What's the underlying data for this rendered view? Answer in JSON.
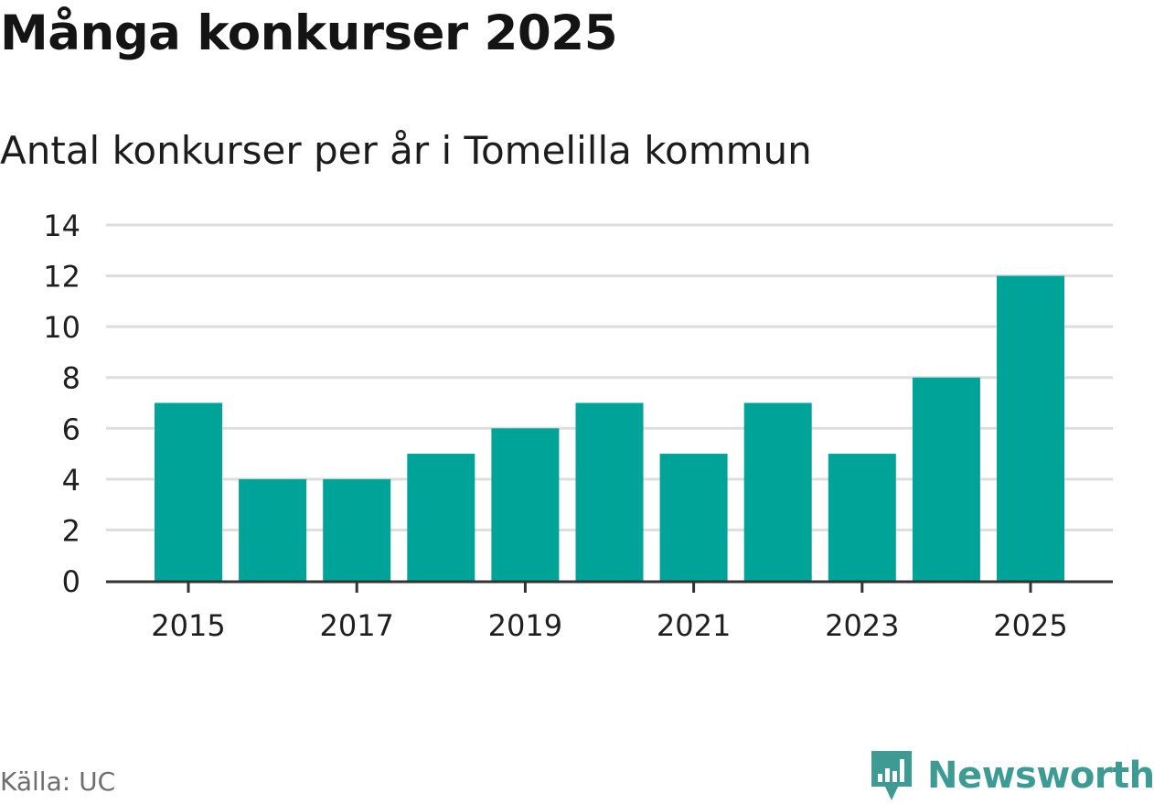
{
  "title": "Många konkurser 2025",
  "subtitle": "Antal konkurser per år i Tomelilla kommun",
  "source": "Källa: UC",
  "brand": {
    "name": "Newsworthy",
    "icon": "newsworthy-logo-icon",
    "color": "#3d9b93"
  },
  "colors": {
    "bar": "#00a398",
    "grid": "#dddddd",
    "axis": "#333333",
    "text": "#1f1f1f"
  },
  "chart_data": {
    "type": "bar",
    "title": "Många konkurser 2025",
    "subtitle": "Antal konkurser per år i Tomelilla kommun",
    "xlabel": "",
    "ylabel": "",
    "categories": [
      "2015",
      "2016",
      "2017",
      "2018",
      "2019",
      "2020",
      "2021",
      "2022",
      "2023",
      "2024",
      "2025"
    ],
    "values": [
      7,
      4,
      4,
      5,
      6,
      7,
      5,
      7,
      5,
      8,
      12
    ],
    "x_tick_labels": [
      "2015",
      "2017",
      "2019",
      "2021",
      "2023",
      "2025"
    ],
    "y_ticks": [
      0,
      2,
      4,
      6,
      8,
      10,
      12,
      14
    ],
    "ylim": [
      0,
      14
    ],
    "grid": true,
    "legend": "none"
  }
}
